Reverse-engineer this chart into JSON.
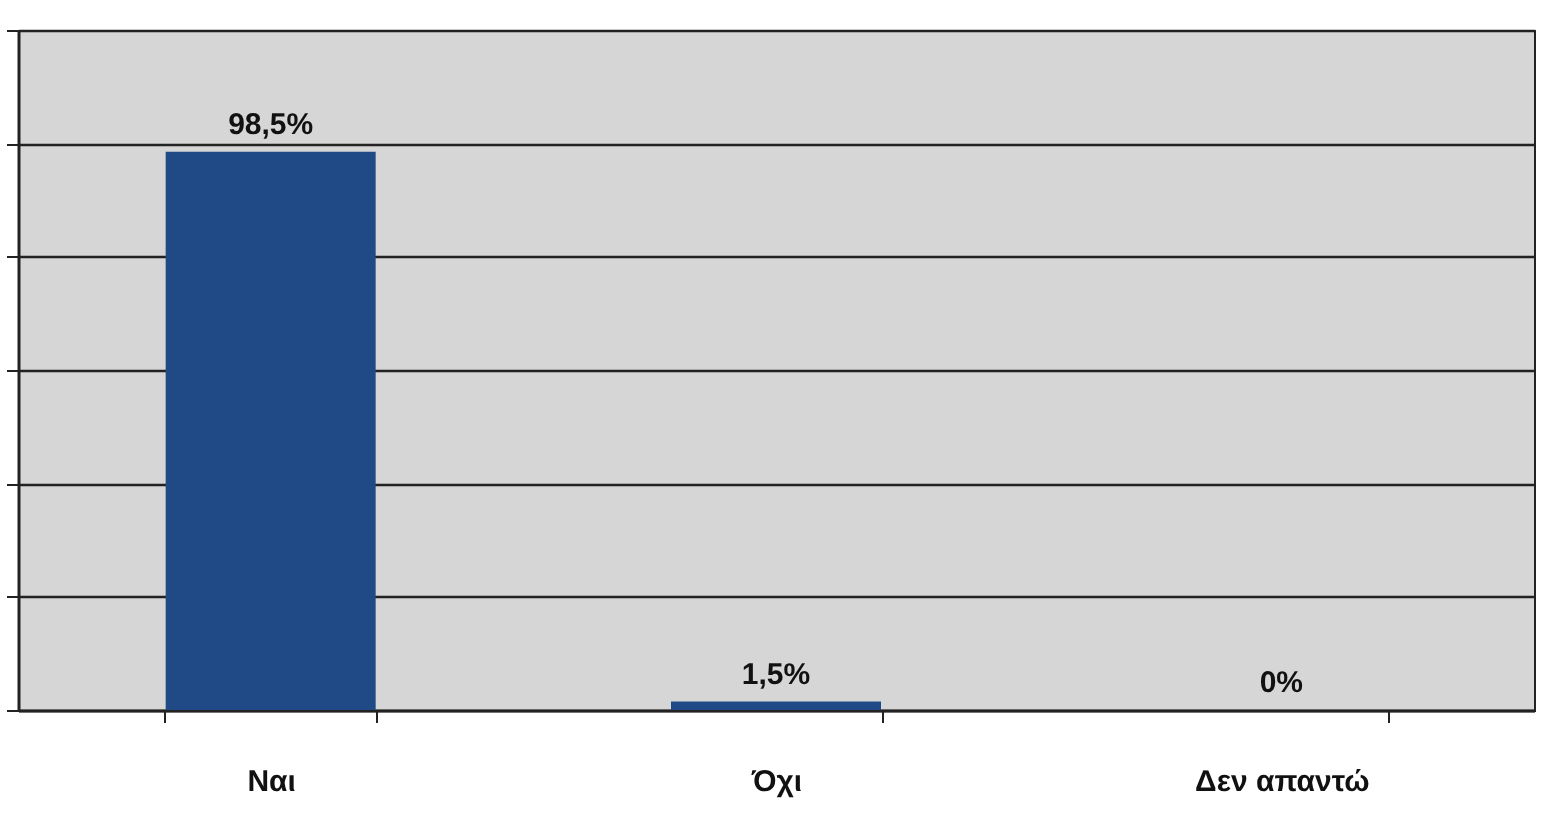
{
  "chart_data": {
    "type": "bar",
    "categories": [
      "Ναι",
      "Όχι",
      "Δεν απαντώ"
    ],
    "values": [
      98.5,
      1.5,
      0
    ],
    "value_labels": [
      "98,5%",
      "1,5%",
      "0%"
    ],
    "color": "#1f4a86",
    "ylim": [
      0,
      120
    ],
    "yticks": [
      {
        "value": 0,
        "label": null
      },
      {
        "value": 20,
        "label": null
      },
      {
        "value": 40,
        "label": null
      },
      {
        "value": 60,
        "label": null
      },
      {
        "value": 80,
        "label": null
      },
      {
        "value": 100,
        "label": null
      },
      {
        "value": 120,
        "label": null
      }
    ],
    "grid": "y",
    "tick_labels": "x"
  }
}
